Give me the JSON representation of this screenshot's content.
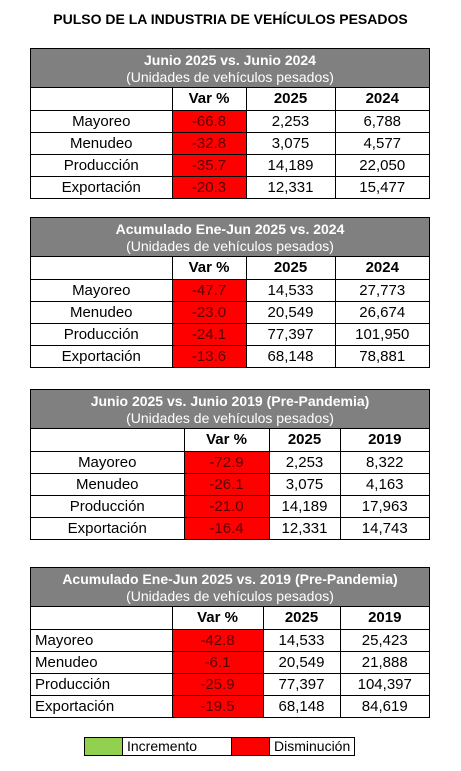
{
  "title": "PULSO DE LA INDUSTRIA DE VEHÍCULOS PESADOS",
  "colors": {
    "header_bg": "#808080",
    "decrease": "#ff0000",
    "increase": "#92d050"
  },
  "blocks": [
    {
      "title": "Junio 2025 vs. Junio 2024",
      "subtitle": "(Unidades de vehículos pesados)",
      "headers": [
        "Var %",
        "2025",
        "2024"
      ],
      "rows": [
        {
          "label": "Mayoreo",
          "var": "-66.8",
          "a": "2,253",
          "b": "6,788"
        },
        {
          "label": "Menudeo",
          "var": "-32.8",
          "a": "3,075",
          "b": "4,577"
        },
        {
          "label": "Producción",
          "var": "-35.7",
          "a": "14,189",
          "b": "22,050"
        },
        {
          "label": "Exportación",
          "var": "-20.3",
          "a": "12,331",
          "b": "15,477"
        }
      ]
    },
    {
      "title": "Acumulado Ene-Jun 2025 vs. 2024",
      "subtitle": "(Unidades de vehículos pesados)",
      "headers": [
        "Var %",
        "2025",
        "2024"
      ],
      "rows": [
        {
          "label": "Mayoreo",
          "var": "-47.7",
          "a": "14,533",
          "b": "27,773"
        },
        {
          "label": "Menudeo",
          "var": "-23.0",
          "a": "20,549",
          "b": "26,674"
        },
        {
          "label": "Producción",
          "var": "-24.1",
          "a": "77,397",
          "b": "101,950"
        },
        {
          "label": "Exportación",
          "var": "-13.6",
          "a": "68,148",
          "b": "78,881"
        }
      ]
    },
    {
      "title": "Junio 2025 vs. Junio 2019 (Pre-Pandemia)",
      "subtitle": "(Unidades de vehículos pesados)",
      "headers": [
        "Var %",
        "2025",
        "2019"
      ],
      "rows": [
        {
          "label": "Mayoreo",
          "var": "-72.9",
          "a": "2,253",
          "b": "8,322"
        },
        {
          "label": "Menudeo",
          "var": "-26.1",
          "a": "3,075",
          "b": "4,163"
        },
        {
          "label": "Producción",
          "var": "-21.0",
          "a": "14,189",
          "b": "17,963"
        },
        {
          "label": "Exportación",
          "var": "-16.4",
          "a": "12,331",
          "b": "14,743"
        }
      ]
    },
    {
      "title": "Acumulado Ene-Jun 2025 vs. 2019 (Pre-Pandemia)",
      "subtitle": "(Unidades de vehículos pesados)",
      "headers": [
        "Var %",
        "2025",
        "2019"
      ],
      "rows": [
        {
          "label": "Mayoreo",
          "var": "-42.8",
          "a": "14,533",
          "b": "25,423"
        },
        {
          "label": "Menudeo",
          "var": "-6.1",
          "a": "20,549",
          "b": "21,888"
        },
        {
          "label": "Producción",
          "var": "-25.9",
          "a": "77,397",
          "b": "104,397"
        },
        {
          "label": "Exportación",
          "var": "-19.5",
          "a": "68,148",
          "b": "84,619"
        }
      ]
    }
  ],
  "legend": {
    "increase": "Incremento",
    "decrease": "Disminución"
  }
}
